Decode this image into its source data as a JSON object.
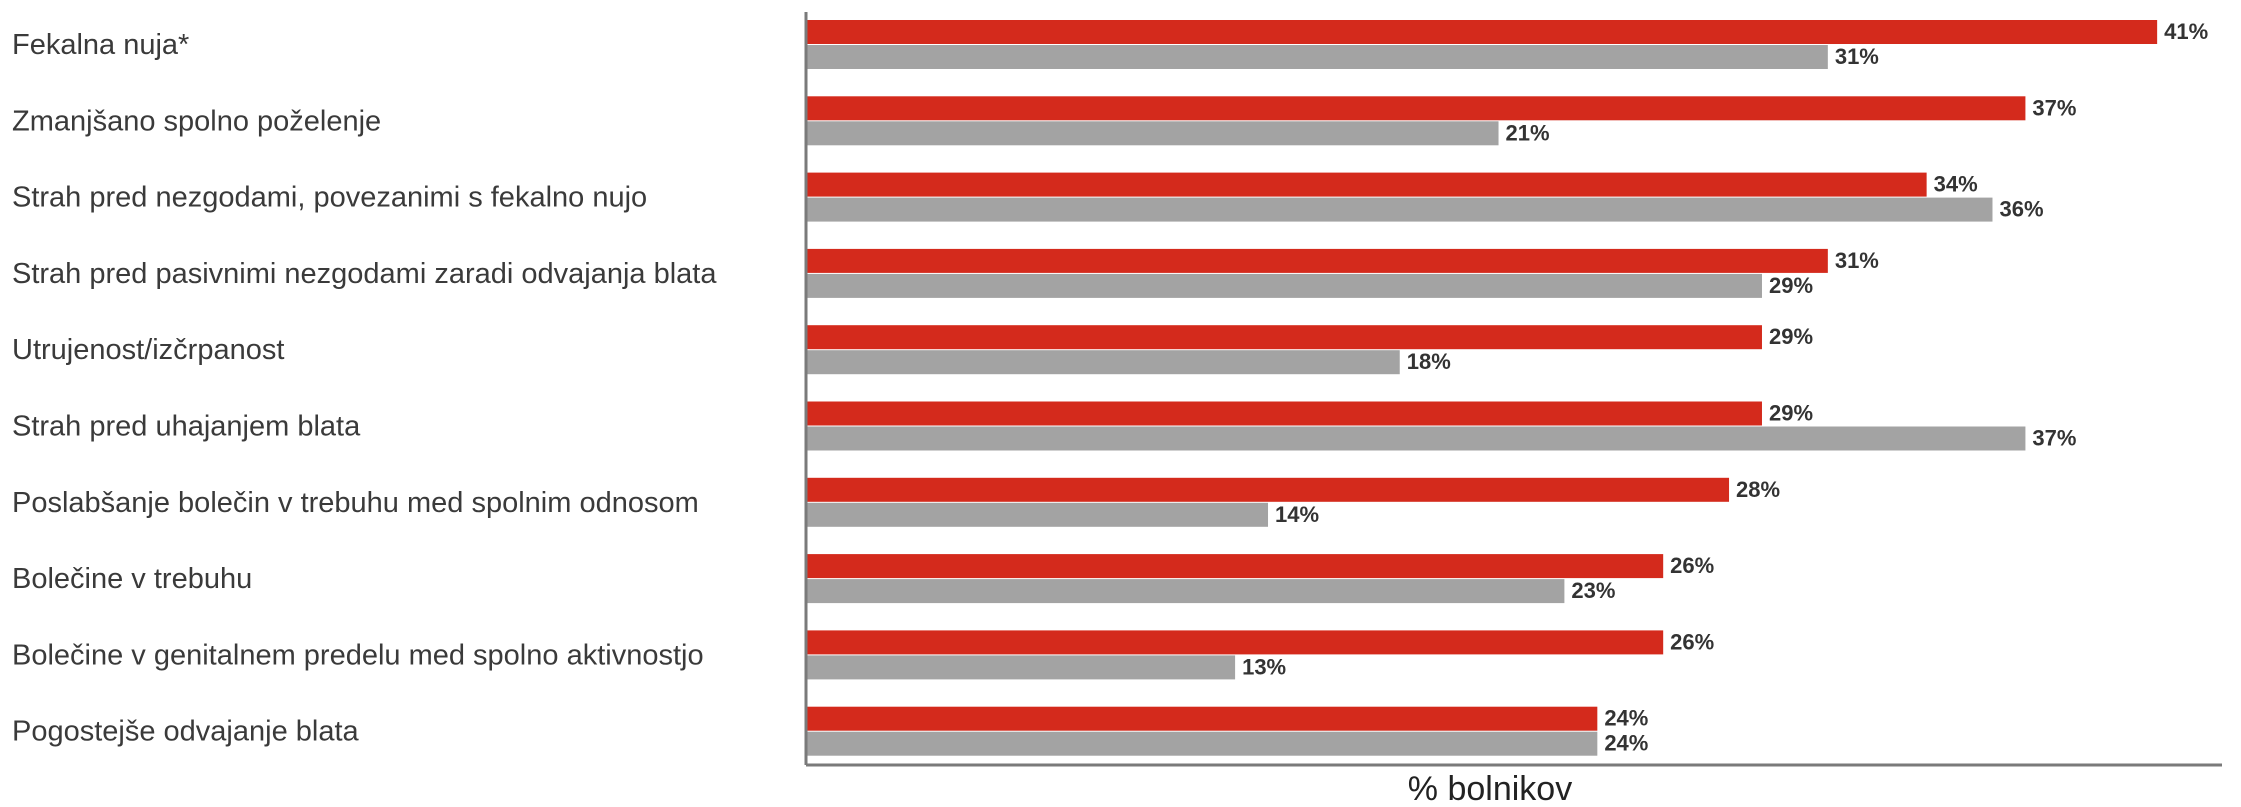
{
  "chart_data": {
    "type": "bar",
    "orientation": "horizontal",
    "categories": [
      "Fekalna nuja*",
      "Zmanjšano spolno poželenje",
      "Strah pred nezgodami, povezanimi s fekalno nujo",
      "Strah pred pasivnimi nezgodami zaradi odvajanja blata",
      "Utrujenost/izčrpanost",
      "Strah pred uhajanjem blata",
      "Poslabšanje bolečin v trebuhu med spolnim odnosom",
      "Bolečine v trebuhu",
      "Bolečine v genitalnem predelu med spolno aktivnostjo",
      "Pogostejše odvajanje blata"
    ],
    "series": [
      {
        "color": "#d42a1c",
        "values": [
          41,
          37,
          34,
          31,
          29,
          29,
          28,
          26,
          26,
          24
        ],
        "labels": [
          "41%",
          "37%",
          "34%",
          "31%",
          "29%",
          "29%",
          "28%",
          "26%",
          "26%",
          "24%"
        ]
      },
      {
        "color": "#a3a3a3",
        "values": [
          31,
          21,
          36,
          29,
          18,
          37,
          14,
          23,
          13,
          24
        ],
        "labels": [
          "31%",
          "21%",
          "36%",
          "29%",
          "18%",
          "37%",
          "14%",
          "23%",
          "13%",
          "24%"
        ]
      }
    ],
    "xlabel": "% bolnikov",
    "xlim": [
      0,
      43
    ],
    "grid": false,
    "legend": "none"
  }
}
